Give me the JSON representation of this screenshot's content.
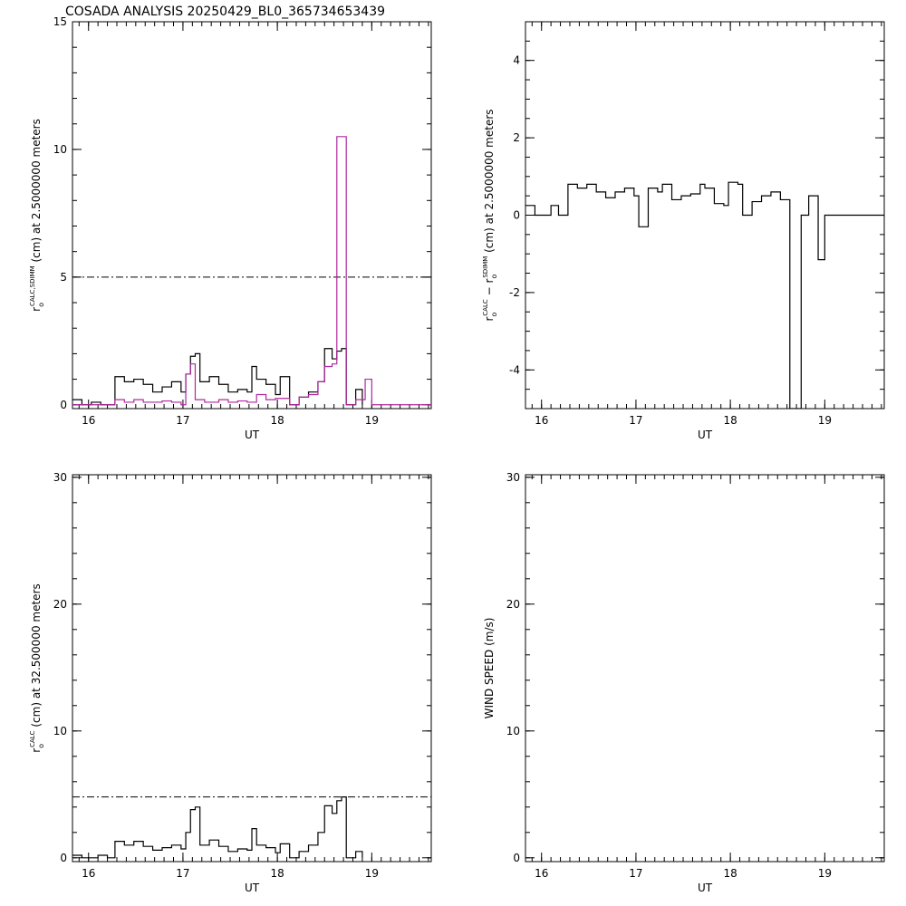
{
  "title": "COSADA ANALYSIS 20250429_BL0_365734653439",
  "chart_data": [
    {
      "type": "line",
      "drawstyle": "steps-post",
      "xlabel": "UT",
      "ylabel_parts": [
        {
          "text": "r"
        },
        {
          "text": "o",
          "style": "sub"
        },
        {
          "text": "CALC,SDIMM",
          "style": "sup"
        },
        {
          "text": " (cm)  at  2.5000000 meters"
        }
      ],
      "xlim": [
        15.83,
        19.63
      ],
      "xticks": [
        16,
        17,
        18,
        19
      ],
      "xminor": 10,
      "ylim": [
        -0.15,
        15
      ],
      "yticks": [
        0,
        5,
        10,
        15
      ],
      "yminor": 5,
      "hline": 5,
      "series": [
        {
          "color": "#000000",
          "x": [
            15.83,
            15.93,
            16.03,
            16.13,
            16.28,
            16.38,
            16.48,
            16.58,
            16.68,
            16.78,
            16.88,
            16.98,
            17.03,
            17.08,
            17.13,
            17.18,
            17.28,
            17.38,
            17.48,
            17.58,
            17.68,
            17.73,
            17.78,
            17.88,
            17.98,
            18.03,
            18.13,
            18.23,
            18.33,
            18.43,
            18.5,
            18.58,
            18.63,
            18.68,
            18.73,
            18.83,
            18.9
          ],
          "values": [
            0.2,
            0.0,
            0.1,
            0.0,
            1.1,
            0.9,
            1.0,
            0.8,
            0.5,
            0.7,
            0.9,
            0.5,
            1.2,
            1.9,
            2.0,
            0.9,
            1.1,
            0.8,
            0.5,
            0.6,
            0.5,
            1.5,
            1.0,
            0.8,
            0.4,
            1.1,
            0.0,
            0.3,
            0.5,
            0.9,
            2.2,
            1.8,
            2.1,
            2.2,
            0.0,
            0.6,
            0.0
          ]
        },
        {
          "color": "#b0289f",
          "x": [
            15.83,
            16.28,
            16.38,
            16.48,
            16.58,
            16.68,
            16.78,
            16.88,
            16.98,
            17.03,
            17.08,
            17.13,
            17.23,
            17.38,
            17.48,
            17.58,
            17.68,
            17.78,
            17.88,
            17.98,
            18.13,
            18.23,
            18.33,
            18.43,
            18.5,
            18.58,
            18.63,
            18.73,
            18.83,
            18.93,
            19.0,
            19.63
          ],
          "values": [
            0.0,
            0.2,
            0.1,
            0.2,
            0.1,
            0.1,
            0.15,
            0.1,
            0.0,
            1.2,
            1.6,
            0.2,
            0.1,
            0.2,
            0.1,
            0.15,
            0.1,
            0.4,
            0.2,
            0.25,
            0.0,
            0.3,
            0.4,
            0.9,
            1.5,
            1.6,
            10.5,
            0.0,
            0.2,
            1.0,
            0.0,
            0.0
          ]
        }
      ]
    },
    {
      "type": "line",
      "drawstyle": "steps-post",
      "xlabel": "UT",
      "ylabel_parts": [
        {
          "text": "r"
        },
        {
          "text": "o",
          "style": "sub"
        },
        {
          "text": "CALC",
          "style": "sup"
        },
        {
          "text": "  − r"
        },
        {
          "text": "o",
          "style": "sub"
        },
        {
          "text": "SDIMM",
          "style": "sup"
        },
        {
          "text": " (cm) at 2.5000000 meters"
        }
      ],
      "xlim": [
        15.83,
        19.63
      ],
      "xticks": [
        16,
        17,
        18,
        19
      ],
      "xminor": 10,
      "ylim": [
        -5,
        5
      ],
      "yticks": [
        -4,
        -2,
        0,
        2,
        4
      ],
      "yminor": 4,
      "series": [
        {
          "color": "#000000",
          "x": [
            15.83,
            15.93,
            16.03,
            16.1,
            16.18,
            16.28,
            16.38,
            16.48,
            16.58,
            16.68,
            16.78,
            16.88,
            16.98,
            17.03,
            17.13,
            17.23,
            17.28,
            17.38,
            17.48,
            17.58,
            17.68,
            17.73,
            17.83,
            17.93,
            17.98,
            18.08,
            18.13,
            18.23,
            18.33,
            18.43,
            18.53,
            18.63,
            18.75,
            18.83,
            18.93,
            19.0,
            19.63
          ],
          "values": [
            0.25,
            0.0,
            0.0,
            0.25,
            0.0,
            0.8,
            0.7,
            0.8,
            0.6,
            0.45,
            0.6,
            0.7,
            0.5,
            -0.3,
            0.7,
            0.6,
            0.8,
            0.4,
            0.5,
            0.55,
            0.8,
            0.7,
            0.3,
            0.25,
            0.85,
            0.8,
            0.0,
            0.35,
            0.5,
            0.6,
            0.4,
            -5,
            0.0,
            0.5,
            -1.15,
            0.0,
            0.0
          ]
        }
      ]
    },
    {
      "type": "line",
      "drawstyle": "steps-post",
      "xlabel": "UT",
      "ylabel_parts": [
        {
          "text": "r"
        },
        {
          "text": "o",
          "style": "sub"
        },
        {
          "text": "CALC",
          "style": "sup"
        },
        {
          "text": " (cm)  at  32.500000 meters"
        }
      ],
      "xlim": [
        15.83,
        19.63
      ],
      "xticks": [
        16,
        17,
        18,
        19
      ],
      "xminor": 10,
      "ylim": [
        -0.3,
        30.2
      ],
      "yticks": [
        0,
        10,
        20,
        30
      ],
      "yminor": 5,
      "hline": 4.8,
      "series": [
        {
          "color": "#000000",
          "x": [
            15.83,
            15.93,
            16.1,
            16.2,
            16.28,
            16.38,
            16.48,
            16.58,
            16.68,
            16.78,
            16.88,
            16.98,
            17.03,
            17.08,
            17.13,
            17.18,
            17.28,
            17.38,
            17.48,
            17.58,
            17.68,
            17.73,
            17.78,
            17.88,
            17.98,
            18.03,
            18.13,
            18.23,
            18.33,
            18.43,
            18.5,
            18.58,
            18.63,
            18.68,
            18.73,
            18.83,
            18.9
          ],
          "values": [
            0.2,
            0.0,
            0.2,
            0.0,
            1.3,
            1.0,
            1.3,
            0.9,
            0.6,
            0.8,
            1.0,
            0.7,
            2.0,
            3.8,
            4.0,
            1.0,
            1.4,
            0.9,
            0.5,
            0.7,
            0.6,
            2.3,
            1.0,
            0.8,
            0.4,
            1.1,
            0.0,
            0.5,
            1.0,
            2.0,
            4.1,
            3.5,
            4.5,
            4.8,
            0.0,
            0.5,
            0.0
          ]
        }
      ]
    },
    {
      "type": "line",
      "drawstyle": "steps-post",
      "xlabel": "UT",
      "ylabel_parts": [
        {
          "text": "WIND SPEED (m/s)"
        }
      ],
      "xlim": [
        15.83,
        19.63
      ],
      "xticks": [
        16,
        17,
        18,
        19
      ],
      "xminor": 10,
      "ylim": [
        -0.3,
        30.2
      ],
      "yticks": [
        0,
        10,
        20,
        30
      ],
      "yminor": 5,
      "series": []
    }
  ]
}
